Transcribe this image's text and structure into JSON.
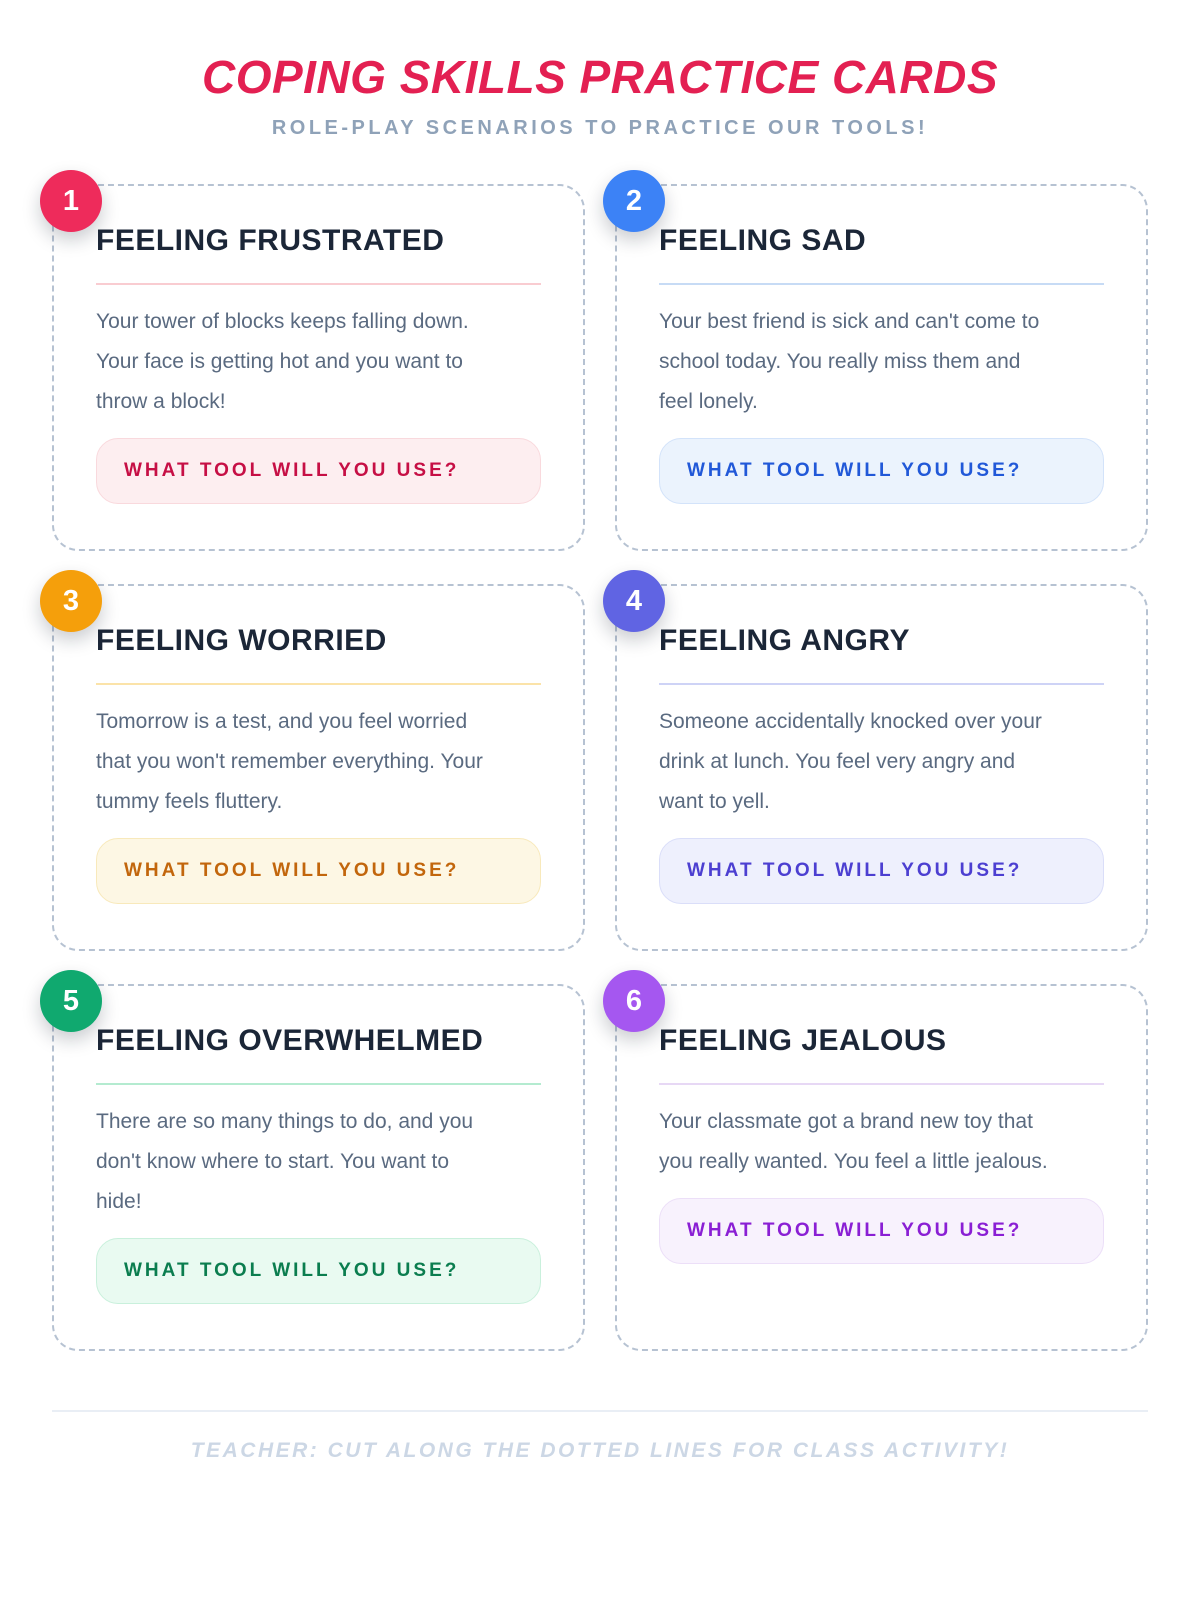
{
  "theme": {
    "title_color": "#e32052",
    "subtitle_color": "#8fa2b8",
    "card_title_color": "#1b2637",
    "body_text_color": "#5a6a80",
    "dash_border_color": "#b6c2d2",
    "footer_divider_color": "#e9eef5",
    "footer_text_color": "#ccd7e5"
  },
  "header": {
    "title": "COPING SKILLS PRACTICE CARDS",
    "subtitle": "ROLE-PLAY SCENARIOS TO PRACTICE OUR TOOLS!"
  },
  "cards": [
    {
      "number": "1",
      "title": "FEELING FRUSTRATED",
      "body_lines": [
        "Your tower of blocks keeps falling down.",
        "Your face is getting hot and you want to",
        "throw a block!"
      ],
      "tool_label": "WHAT TOOL WILL YOU USE?",
      "colors": {
        "badge": "#ee2b5b",
        "divider": "#f9ccd1",
        "pill_bg": "#fdeef0",
        "pill_border": "#f9d9dd",
        "pill_text": "#c60f45"
      }
    },
    {
      "number": "2",
      "title": "FEELING SAD",
      "body_lines": [
        "Your best friend is sick and can't come to",
        "school today. You really miss them and",
        "feel lonely."
      ],
      "tool_label": "WHAT TOOL WILL YOU USE?",
      "colors": {
        "badge": "#3c82f6",
        "divider": "#c7dbf5",
        "pill_bg": "#ebf3fd",
        "pill_border": "#d3e3fa",
        "pill_text": "#2158d8"
      }
    },
    {
      "number": "3",
      "title": "FEELING WORRIED",
      "body_lines": [
        "Tomorrow is a test, and you feel worried",
        "that you won't remember everything. Your",
        "tummy feels fluttery."
      ],
      "tool_label": "WHAT TOOL WILL YOU USE?",
      "colors": {
        "badge": "#f59f0b",
        "divider": "#fbe3a9",
        "pill_bg": "#fdf7e4",
        "pill_border": "#f8e9bb",
        "pill_text": "#c2660c"
      }
    },
    {
      "number": "4",
      "title": "FEELING ANGRY",
      "body_lines": [
        "Someone accidentally knocked over your",
        "drink at lunch. You feel very angry and",
        "want to yell."
      ],
      "tool_label": "WHAT TOOL WILL YOU USE?",
      "colors": {
        "badge": "#6064e3",
        "divider": "#ced3f6",
        "pill_bg": "#eef0fd",
        "pill_border": "#dadef9",
        "pill_text": "#4c3fd1"
      }
    },
    {
      "number": "5",
      "title": "FEELING OVERWHELMED",
      "body_lines": [
        "There are so many things to do, and you",
        "don't know where to start. You want to",
        "hide!"
      ],
      "tool_label": "WHAT TOOL WILL YOU USE?",
      "colors": {
        "badge": "#10a96f",
        "divider": "#b4ebd0",
        "pill_bg": "#e9faf1",
        "pill_border": "#c9f0dc",
        "pill_text": "#0b7d4f"
      }
    },
    {
      "number": "6",
      "title": "FEELING JEALOUS",
      "body_lines": [
        "Your classmate got a brand new toy that",
        "you really wanted. You feel a little jealous."
      ],
      "tool_label": "WHAT TOOL WILL YOU USE?",
      "colors": {
        "badge": "#a557f0",
        "divider": "#e7d8f5",
        "pill_bg": "#f8f2fd",
        "pill_border": "#ecdff8",
        "pill_text": "#8a1fd4"
      }
    }
  ],
  "footer": {
    "note": "TEACHER: CUT ALONG THE DOTTED LINES FOR CLASS ACTIVITY!"
  }
}
